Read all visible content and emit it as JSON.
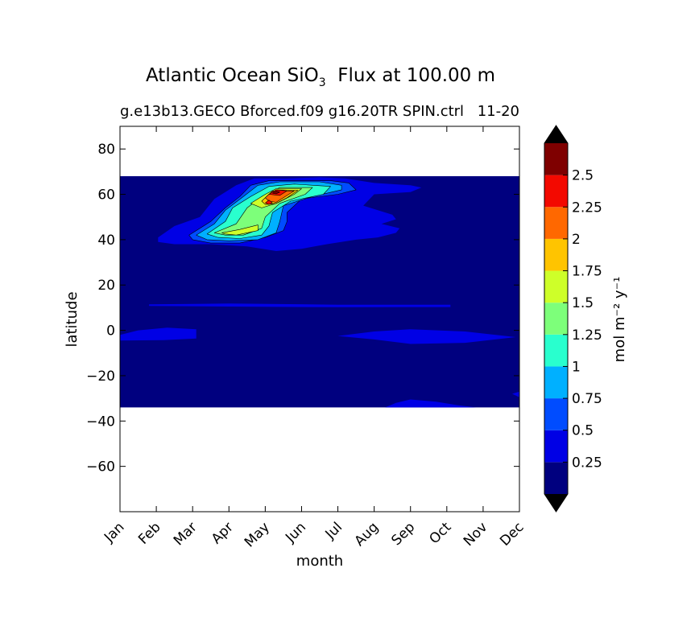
{
  "chart_data": {
    "type": "heatmap",
    "title": "Atlantic Ocean SiO",
    "title_subscript": "3",
    "title_suffix": "Flux at 100.00 m",
    "subtitle_left": "g.e13b13.GECO Bforced.f09 g16.20TR SPIN.ctrl",
    "subtitle_right": "11-20",
    "xlabel": "month",
    "ylabel": "latitude",
    "x_categories": [
      "Jan",
      "Feb",
      "Mar",
      "Apr",
      "May",
      "Jun",
      "Jul",
      "Aug",
      "Sep",
      "Oct",
      "Nov",
      "Dec"
    ],
    "ylim": [
      -80,
      90
    ],
    "y_ticks": [
      80,
      60,
      40,
      20,
      0,
      -20,
      -40,
      -60
    ],
    "y_tick_labels": [
      "80",
      "60",
      "40",
      "20",
      "0",
      "−20",
      "−40",
      "−60"
    ],
    "data_lat_range": [
      -34,
      68
    ],
    "colorbar": {
      "label": "mol m⁻² y⁻¹",
      "levels": [
        0,
        0.25,
        0.5,
        0.75,
        1,
        1.25,
        1.5,
        1.75,
        2,
        2.25,
        2.5,
        2.75
      ],
      "tick_labels": [
        "0.25",
        "0.5",
        "0.75",
        "1",
        "1.25",
        "1.5",
        "1.75",
        "2",
        "2.25",
        "2.5"
      ],
      "colors": [
        "#00007f",
        "#0000e5",
        "#004cff",
        "#00b0ff",
        "#29ffce",
        "#7dff7a",
        "#ceff29",
        "#ffc400",
        "#ff6800",
        "#f30900",
        "#7f0000"
      ],
      "extend": "both"
    },
    "regions": [
      {
        "name": "north-atlantic-bloom",
        "level_index": 1,
        "points": [
          [
            1.05,
            41
          ],
          [
            1.5,
            46
          ],
          [
            2.2,
            50
          ],
          [
            2.6,
            58
          ],
          [
            3.2,
            64
          ],
          [
            3.7,
            67
          ],
          [
            4.6,
            67
          ],
          [
            5.5,
            67.5
          ],
          [
            6.2,
            67
          ],
          [
            7,
            65
          ],
          [
            8,
            64
          ],
          [
            8.3,
            63
          ],
          [
            8,
            61
          ],
          [
            7,
            60
          ],
          [
            6.7,
            55
          ],
          [
            7.5,
            51
          ],
          [
            7.6,
            49
          ],
          [
            7.2,
            47
          ],
          [
            7.7,
            45
          ],
          [
            7.6,
            43
          ],
          [
            7.1,
            41
          ],
          [
            6.5,
            40
          ],
          [
            5.7,
            38
          ],
          [
            5,
            36
          ],
          [
            4.3,
            35
          ],
          [
            3.5,
            37
          ],
          [
            2.5,
            38
          ],
          [
            1.5,
            38
          ],
          [
            1.05,
            39
          ]
        ]
      },
      {
        "name": "bloom-0.5",
        "level_index": 2,
        "points": [
          [
            1.9,
            42
          ],
          [
            2.5,
            48
          ],
          [
            2.9,
            54
          ],
          [
            3.3,
            59
          ],
          [
            3.6,
            64
          ],
          [
            4.1,
            66
          ],
          [
            5,
            66
          ],
          [
            5.8,
            66
          ],
          [
            6.3,
            65
          ],
          [
            6.5,
            62
          ],
          [
            6,
            60
          ],
          [
            5,
            58
          ],
          [
            4.6,
            52
          ],
          [
            4.6,
            48
          ],
          [
            4.5,
            44
          ],
          [
            4,
            41
          ],
          [
            3.3,
            38.5
          ],
          [
            2.5,
            38.5
          ],
          [
            2.0,
            40
          ]
        ]
      },
      {
        "name": "bloom-0.75",
        "level_index": 3,
        "points": [
          [
            2.1,
            42
          ],
          [
            2.6,
            47
          ],
          [
            2.9,
            53
          ],
          [
            3.4,
            59
          ],
          [
            3.8,
            64
          ],
          [
            4.4,
            65.5
          ],
          [
            5.5,
            65.5
          ],
          [
            6.1,
            64
          ],
          [
            6.1,
            62
          ],
          [
            5.3,
            59
          ],
          [
            4.5,
            55
          ],
          [
            4.4,
            48
          ],
          [
            4.3,
            43
          ],
          [
            3.8,
            40
          ],
          [
            3,
            39.5
          ],
          [
            2.4,
            40
          ]
        ]
      },
      {
        "name": "bloom-1.0",
        "level_index": 4,
        "points": [
          [
            2.4,
            42.5
          ],
          [
            2.9,
            48
          ],
          [
            3.1,
            54
          ],
          [
            3.6,
            59
          ],
          [
            4.1,
            63.5
          ],
          [
            4.8,
            64.5
          ],
          [
            5.8,
            63.5
          ],
          [
            5.6,
            60
          ],
          [
            4.7,
            57
          ],
          [
            4.2,
            52
          ],
          [
            4.1,
            46
          ],
          [
            3.9,
            42
          ],
          [
            3.3,
            40.5
          ],
          [
            2.7,
            41
          ]
        ]
      },
      {
        "name": "bloom-1.25-a",
        "level_index": 5,
        "points": [
          [
            2.6,
            43
          ],
          [
            3.2,
            47
          ],
          [
            3.5,
            54
          ],
          [
            3.9,
            59
          ],
          [
            4.4,
            63
          ],
          [
            5.3,
            63
          ],
          [
            5.1,
            60
          ],
          [
            4.4,
            56
          ],
          [
            4.0,
            50
          ],
          [
            3.9,
            45
          ],
          [
            3.4,
            42
          ],
          [
            2.9,
            42
          ]
        ]
      },
      {
        "name": "bloom-1.5-a",
        "level_index": 6,
        "points": [
          [
            2.8,
            43
          ],
          [
            3.3,
            44.5
          ],
          [
            3.8,
            46.5
          ],
          [
            3.8,
            44
          ],
          [
            3.2,
            42
          ],
          [
            2.9,
            42.5
          ]
        ]
      },
      {
        "name": "bloom-1.5-b",
        "level_index": 6,
        "points": [
          [
            3.6,
            56
          ],
          [
            4.0,
            60
          ],
          [
            4.3,
            62.5
          ],
          [
            5.0,
            62.5
          ],
          [
            4.8,
            60
          ],
          [
            4.3,
            56
          ],
          [
            3.9,
            54
          ]
        ]
      },
      {
        "name": "bloom-1.75",
        "level_index": 7,
        "points": [
          [
            3.9,
            57
          ],
          [
            4.1,
            60
          ],
          [
            4.3,
            62
          ],
          [
            4.9,
            61.8
          ],
          [
            4.6,
            58.5
          ],
          [
            4.3,
            56
          ],
          [
            4.0,
            55.5
          ]
        ]
      },
      {
        "name": "bloom-2.0",
        "level_index": 8,
        "points": [
          [
            4.0,
            58.5
          ],
          [
            4.2,
            61.5
          ],
          [
            4.8,
            61.5
          ],
          [
            4.5,
            58.5
          ],
          [
            4.3,
            56.5
          ],
          [
            4.1,
            57
          ]
        ]
      },
      {
        "name": "bloom-2.25",
        "level_index": 9,
        "points": [
          [
            4.1,
            60
          ],
          [
            4.3,
            62
          ],
          [
            4.6,
            61.5
          ],
          [
            4.4,
            59.5
          ]
        ]
      },
      {
        "name": "bloom-2.5",
        "level_index": 10,
        "points": [
          [
            4.2,
            60.5
          ],
          [
            4.3,
            61.5
          ],
          [
            4.4,
            61
          ],
          [
            4.3,
            60.2
          ]
        ]
      },
      {
        "name": "bloom-2.5-spot",
        "level_index": 9,
        "points": [
          [
            4.0,
            56.2
          ],
          [
            4.1,
            57.5
          ],
          [
            4.2,
            56.2
          ],
          [
            4.1,
            55.5
          ]
        ]
      },
      {
        "name": "tropical-band-12N",
        "level_index": 1,
        "points": [
          [
            0.8,
            11.5
          ],
          [
            3,
            11.8
          ],
          [
            6,
            11.3
          ],
          [
            9.1,
            11.3
          ],
          [
            9.1,
            10.3
          ],
          [
            6,
            10.2
          ],
          [
            3,
            10.5
          ],
          [
            0.8,
            10.8
          ]
        ]
      },
      {
        "name": "equatorial-west",
        "level_index": 1,
        "points": [
          [
            0,
            -4.5
          ],
          [
            0,
            -2
          ],
          [
            0.5,
            0
          ],
          [
            1.3,
            1.2
          ],
          [
            2.1,
            0.5
          ],
          [
            2.1,
            -3.6
          ],
          [
            1.2,
            -4.3
          ]
        ]
      },
      {
        "name": "equatorial-east",
        "level_index": 1,
        "points": [
          [
            6,
            -2.5
          ],
          [
            7,
            -0.5
          ],
          [
            8,
            0.5
          ],
          [
            9.5,
            -0.5
          ],
          [
            10.9,
            -3
          ],
          [
            9.5,
            -5.5
          ],
          [
            8,
            -6
          ],
          [
            7,
            -4
          ]
        ]
      },
      {
        "name": "southern-bump",
        "level_index": 1,
        "points": [
          [
            7.3,
            -34
          ],
          [
            7.6,
            -32
          ],
          [
            8.0,
            -30.5
          ],
          [
            8.7,
            -31.5
          ],
          [
            9.3,
            -33
          ],
          [
            9.8,
            -34
          ]
        ]
      },
      {
        "name": "southeast-edge",
        "level_index": 1,
        "points": [
          [
            10.8,
            -28
          ],
          [
            11,
            -27
          ],
          [
            11,
            -29.5
          ]
        ]
      }
    ]
  }
}
